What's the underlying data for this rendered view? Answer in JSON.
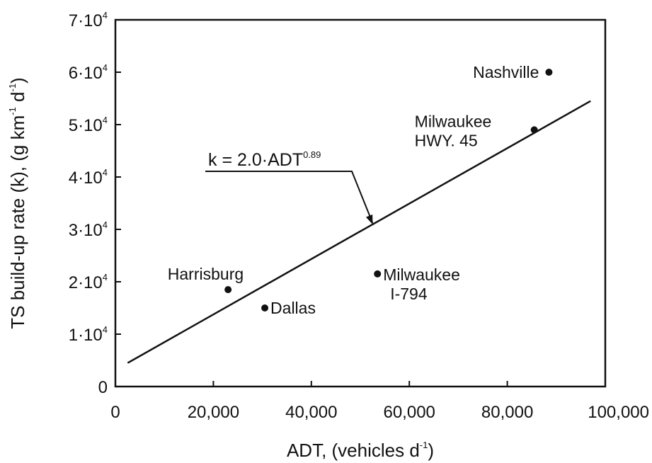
{
  "chart_data": {
    "type": "scatter",
    "xlabel": "ADT, (vehicles d",
    "xlabel_sup": "-1",
    "xlabel_end": ")",
    "ylabel": "TS build-up rate (k), (g km",
    "ylabel_sup1": "-1",
    "ylabel_mid": " d",
    "ylabel_sup2": "-1",
    "ylabel_end": ")",
    "xlim": [
      0,
      100000
    ],
    "ylim": [
      0,
      70000
    ],
    "x_ticks": [
      {
        "value": 0,
        "label": "0"
      },
      {
        "value": 20000,
        "label": "20,000"
      },
      {
        "value": 40000,
        "label": "40,000"
      },
      {
        "value": 60000,
        "label": "60,000"
      },
      {
        "value": 80000,
        "label": "80,000"
      },
      {
        "value": 100000,
        "label": "100,000"
      }
    ],
    "y_ticks": [
      {
        "value": 0,
        "label": "0",
        "exp": ""
      },
      {
        "value": 10000,
        "label": "1·10",
        "exp": "4"
      },
      {
        "value": 20000,
        "label": "2·10",
        "exp": "4"
      },
      {
        "value": 30000,
        "label": "3·10",
        "exp": "4"
      },
      {
        "value": 40000,
        "label": "4·10",
        "exp": "4"
      },
      {
        "value": 50000,
        "label": "5·10",
        "exp": "4"
      },
      {
        "value": 60000,
        "label": "6·10",
        "exp": "4"
      },
      {
        "value": 70000,
        "label": "7·10",
        "exp": "4"
      }
    ],
    "points": [
      {
        "x": 23000,
        "y": 18500,
        "label": [
          "Harrisburg"
        ],
        "anchor": "above-left"
      },
      {
        "x": 30500,
        "y": 15000,
        "label": [
          "Dallas"
        ],
        "anchor": "right"
      },
      {
        "x": 53500,
        "y": 21500,
        "label": [
          "Milwaukee",
          "I-794"
        ],
        "anchor": "right"
      },
      {
        "x": 85500,
        "y": 49000,
        "label": [
          "Milwaukee",
          "HWY. 45"
        ],
        "anchor": "left"
      },
      {
        "x": 88500,
        "y": 60000,
        "label": [
          "Nashville"
        ],
        "anchor": "left"
      }
    ],
    "fit_line": {
      "x_start": 2500,
      "x_end": 97000,
      "y_start": 4500,
      "y_end": 54500,
      "label": "k = 2.0·ADT",
      "label_exp": "0.89"
    },
    "grid": false,
    "legend": "none"
  }
}
